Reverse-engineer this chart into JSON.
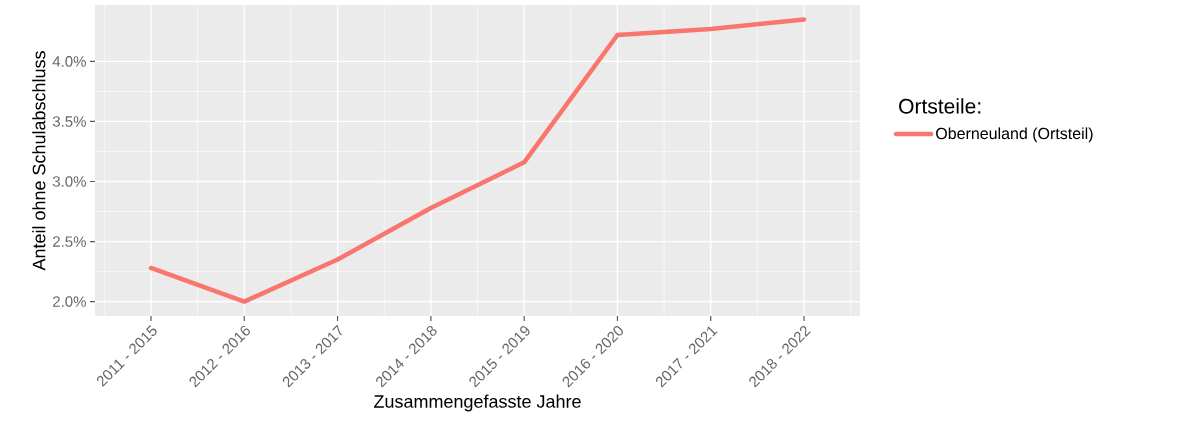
{
  "chart_data": {
    "type": "line",
    "xlabel": "Zusammengefasste Jahre",
    "ylabel": "Anteil ohne Schulabschluss",
    "legend_title": "Ortsteile:",
    "categories": [
      "2011 - 2015",
      "2012 - 2016",
      "2013 - 2017",
      "2014 - 2018",
      "2015 - 2019",
      "2016 - 2020",
      "2017 - 2021",
      "2018 - 2022"
    ],
    "series": [
      {
        "name": "Oberneuland (Ortsteil)",
        "color": "#f8766d",
        "values": [
          2.28,
          2.0,
          2.35,
          2.78,
          3.16,
          4.22,
          4.27,
          4.35
        ]
      }
    ],
    "ylim": [
      1.88,
      4.47
    ],
    "yticks": [
      {
        "value": 2.0,
        "label": "2.0%"
      },
      {
        "value": 2.5,
        "label": "2.5%"
      },
      {
        "value": 3.0,
        "label": "3.0%"
      },
      {
        "value": 3.5,
        "label": "3.5%"
      },
      {
        "value": 4.0,
        "label": "4.0%"
      }
    ],
    "grid": true,
    "legend": "right",
    "marker": "none",
    "line_style": "solid"
  }
}
